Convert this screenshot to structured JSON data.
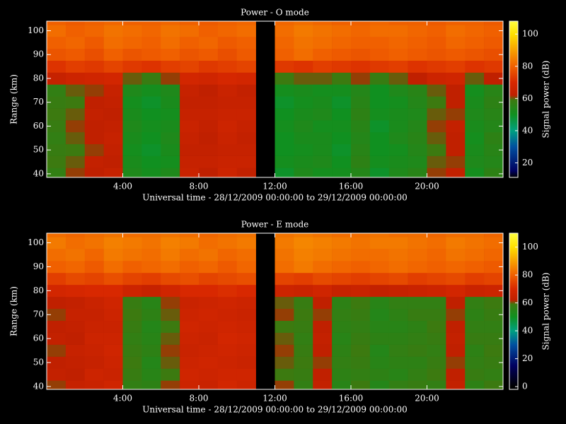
{
  "chart_data": [
    {
      "type": "heatmap",
      "title": "Power - O mode",
      "x_label": "Universal time - 28/12/2009 00:00:00 to 29/12/2009 00:00:00",
      "y_label": "Range (km)",
      "colorbar_label": "Signal power (dB)",
      "x": [
        0.5,
        1.5,
        2.5,
        3.5,
        4.5,
        5.5,
        6.5,
        7.5,
        8.5,
        9.5,
        10.5,
        11.5,
        12.5,
        13.5,
        14.5,
        15.5,
        16.5,
        17.5,
        18.5,
        19.5,
        20.5,
        21.5,
        22.5,
        23.5
      ],
      "y": [
        40,
        45,
        50,
        55,
        60,
        65,
        70,
        75,
        80,
        85,
        90,
        95,
        100,
        105
      ],
      "z": [
        [
          57,
          61,
          62,
          64,
          53,
          51,
          53,
          65,
          62,
          66,
          63,
          null,
          49,
          53,
          51,
          51,
          54,
          49,
          53,
          55,
          61,
          63,
          51,
          56
        ],
        [
          59,
          60,
          63,
          62,
          52,
          50,
          51,
          64,
          64,
          65,
          65,
          null,
          51,
          52,
          53,
          50,
          56,
          51,
          52,
          53,
          60,
          61,
          53,
          54
        ],
        [
          58,
          59,
          61,
          63,
          51,
          49,
          52,
          63,
          63,
          64,
          64,
          null,
          50,
          51,
          52,
          49,
          55,
          50,
          51,
          54,
          59,
          62,
          52,
          55
        ],
        [
          57,
          60,
          62,
          64,
          52,
          50,
          53,
          64,
          62,
          65,
          63,
          null,
          50,
          52,
          52,
          50,
          54,
          50,
          53,
          55,
          60,
          62,
          51,
          56
        ],
        [
          58,
          61,
          62,
          63,
          53,
          51,
          52,
          65,
          63,
          66,
          64,
          null,
          51,
          53,
          51,
          51,
          55,
          49,
          52,
          54,
          61,
          63,
          52,
          54
        ],
        [
          59,
          60,
          63,
          62,
          52,
          50,
          51,
          64,
          64,
          65,
          65,
          null,
          50,
          52,
          53,
          50,
          56,
          51,
          52,
          53,
          60,
          61,
          53,
          55
        ],
        [
          58,
          59,
          62,
          63,
          51,
          49,
          52,
          63,
          63,
          64,
          64,
          null,
          49,
          51,
          52,
          49,
          55,
          50,
          51,
          54,
          59,
          62,
          52,
          56
        ],
        [
          57,
          60,
          61,
          64,
          53,
          51,
          53,
          64,
          62,
          65,
          63,
          null,
          51,
          52,
          51,
          51,
          54,
          50,
          53,
          55,
          60,
          62,
          51,
          55
        ],
        [
          64,
          66,
          67,
          68,
          60,
          58,
          61,
          68,
          67,
          69,
          68,
          null,
          59,
          60,
          60,
          59,
          61,
          58,
          60,
          62,
          66,
          67,
          60,
          62
        ],
        [
          72,
          74,
          73,
          75,
          73,
          72,
          74,
          75,
          73,
          74,
          75,
          null,
          73,
          72,
          74,
          73,
          72,
          73,
          74,
          72,
          73,
          74,
          72,
          73
        ],
        [
          78,
          79,
          77,
          80,
          78,
          79,
          80,
          78,
          79,
          77,
          79,
          null,
          80,
          82,
          80,
          79,
          78,
          79,
          80,
          79,
          78,
          79,
          78,
          77
        ],
        [
          80,
          81,
          79,
          82,
          81,
          80,
          82,
          80,
          81,
          79,
          80,
          null,
          81,
          83,
          82,
          81,
          80,
          80,
          81,
          80,
          79,
          81,
          80,
          79
        ],
        [
          82,
          80,
          81,
          83,
          82,
          81,
          83,
          82,
          80,
          81,
          82,
          null,
          82,
          84,
          83,
          82,
          81,
          82,
          82,
          81,
          80,
          82,
          81,
          80
        ],
        [
          80,
          79,
          80,
          81,
          80,
          80,
          81,
          80,
          79,
          80,
          81,
          null,
          81,
          82,
          81,
          80,
          80,
          81,
          80,
          80,
          79,
          80,
          80,
          79
        ]
      ],
      "xlim": [
        0,
        24
      ],
      "xticks": [
        {
          "value": 4,
          "label": "4:00"
        },
        {
          "value": 8,
          "label": "8:00"
        },
        {
          "value": 12,
          "label": "12:00"
        },
        {
          "value": 16,
          "label": "16:00"
        },
        {
          "value": 20,
          "label": "20:00"
        }
      ],
      "ylim": [
        38.5,
        104
      ],
      "yticks": [
        40,
        50,
        60,
        70,
        80,
        90,
        100
      ],
      "zlim": [
        11,
        108
      ],
      "zticks": [
        20,
        40,
        60,
        80,
        100
      ],
      "colorscale": [
        [
          0,
          "#000000"
        ],
        [
          15,
          "#000060"
        ],
        [
          30,
          "#0050a0"
        ],
        [
          40,
          "#00a080"
        ],
        [
          50,
          "#109020"
        ],
        [
          59,
          "#3c7a10"
        ],
        [
          62,
          "#c02000"
        ],
        [
          70,
          "#d82800"
        ],
        [
          80,
          "#f06000"
        ],
        [
          90,
          "#f8a000"
        ],
        [
          100,
          "#ffe000"
        ],
        [
          110,
          "#ffff40"
        ]
      ]
    },
    {
      "type": "heatmap",
      "title": "Power - E mode",
      "x_label": "Universal time - 28/12/2009 00:00:00 to 29/12/2009 00:00:00",
      "y_label": "Range (km)",
      "colorbar_label": "Signal power (dB)",
      "x": [
        0.5,
        1.5,
        2.5,
        3.5,
        4.5,
        5.5,
        6.5,
        7.5,
        8.5,
        9.5,
        10.5,
        11.5,
        12.5,
        13.5,
        14.5,
        15.5,
        16.5,
        17.5,
        18.5,
        19.5,
        20.5,
        21.5,
        22.5,
        23.5
      ],
      "y": [
        40,
        45,
        50,
        55,
        60,
        65,
        70,
        75,
        80,
        85,
        90,
        95,
        100,
        105
      ],
      "z": [
        [
          61,
          64,
          65,
          67,
          57,
          56,
          61,
          66,
          65,
          68,
          66,
          null,
          61,
          57,
          63,
          55,
          59,
          54,
          57,
          58,
          57,
          63,
          56,
          59
        ],
        [
          63,
          62,
          66,
          65,
          58,
          55,
          59,
          67,
          66,
          67,
          67,
          null,
          59,
          58,
          62,
          56,
          57,
          56,
          55,
          57,
          59,
          62,
          58,
          57
        ],
        [
          62,
          63,
          64,
          66,
          59,
          54,
          60,
          66,
          67,
          66,
          65,
          null,
          60,
          59,
          61,
          57,
          58,
          55,
          56,
          56,
          58,
          61,
          57,
          58
        ],
        [
          61,
          64,
          65,
          67,
          58,
          56,
          61,
          65,
          66,
          67,
          66,
          null,
          61,
          58,
          62,
          56,
          59,
          54,
          57,
          58,
          57,
          62,
          56,
          59
        ],
        [
          63,
          62,
          66,
          66,
          57,
          55,
          60,
          66,
          65,
          68,
          67,
          null,
          60,
          57,
          63,
          55,
          58,
          56,
          56,
          57,
          58,
          63,
          58,
          58
        ],
        [
          62,
          63,
          65,
          65,
          58,
          54,
          59,
          67,
          66,
          67,
          66,
          null,
          59,
          58,
          62,
          56,
          57,
          55,
          55,
          56,
          59,
          62,
          57,
          57
        ],
        [
          61,
          64,
          64,
          66,
          59,
          56,
          60,
          66,
          67,
          66,
          65,
          null,
          61,
          59,
          61,
          57,
          58,
          54,
          56,
          58,
          58,
          61,
          56,
          58
        ],
        [
          62,
          63,
          65,
          67,
          58,
          55,
          61,
          65,
          66,
          67,
          66,
          null,
          60,
          58,
          62,
          56,
          59,
          55,
          57,
          57,
          57,
          62,
          57,
          59
        ],
        [
          68,
          69,
          70,
          70,
          66,
          64,
          67,
          70,
          70,
          71,
          70,
          null,
          66,
          65,
          67,
          64,
          65,
          63,
          64,
          65,
          66,
          68,
          65,
          66
        ],
        [
          74,
          76,
          75,
          77,
          75,
          74,
          76,
          77,
          75,
          76,
          77,
          null,
          75,
          74,
          76,
          75,
          74,
          75,
          76,
          74,
          75,
          76,
          74,
          75
        ],
        [
          80,
          81,
          79,
          82,
          80,
          81,
          82,
          80,
          81,
          79,
          81,
          null,
          82,
          84,
          82,
          81,
          80,
          81,
          82,
          81,
          80,
          81,
          80,
          79
        ],
        [
          82,
          83,
          81,
          84,
          83,
          82,
          84,
          82,
          83,
          81,
          82,
          null,
          83,
          85,
          84,
          83,
          82,
          82,
          83,
          82,
          81,
          83,
          82,
          81
        ],
        [
          84,
          82,
          83,
          85,
          84,
          83,
          85,
          84,
          82,
          83,
          84,
          null,
          84,
          86,
          85,
          84,
          83,
          84,
          84,
          83,
          82,
          84,
          83,
          82
        ],
        [
          82,
          81,
          82,
          83,
          82,
          82,
          83,
          82,
          81,
          82,
          83,
          null,
          83,
          84,
          83,
          82,
          82,
          83,
          82,
          82,
          81,
          82,
          82,
          81
        ]
      ],
      "xlim": [
        0,
        24
      ],
      "xticks": [
        {
          "value": 4,
          "label": "4:00"
        },
        {
          "value": 8,
          "label": "8:00"
        },
        {
          "value": 12,
          "label": "12:00"
        },
        {
          "value": 16,
          "label": "16:00"
        },
        {
          "value": 20,
          "label": "20:00"
        }
      ],
      "ylim": [
        38.8,
        104
      ],
      "yticks": [
        40,
        50,
        60,
        70,
        80,
        90,
        100
      ],
      "zlim": [
        -2,
        110
      ],
      "zticks": [
        0,
        20,
        40,
        60,
        80,
        100
      ],
      "colorscale": [
        [
          0,
          "#000000"
        ],
        [
          15,
          "#000060"
        ],
        [
          30,
          "#0050a0"
        ],
        [
          40,
          "#00a080"
        ],
        [
          50,
          "#109020"
        ],
        [
          59,
          "#3c7a10"
        ],
        [
          62,
          "#c02000"
        ],
        [
          70,
          "#d82800"
        ],
        [
          80,
          "#f06000"
        ],
        [
          90,
          "#f8a000"
        ],
        [
          100,
          "#ffe000"
        ],
        [
          110,
          "#ffff40"
        ]
      ]
    }
  ]
}
